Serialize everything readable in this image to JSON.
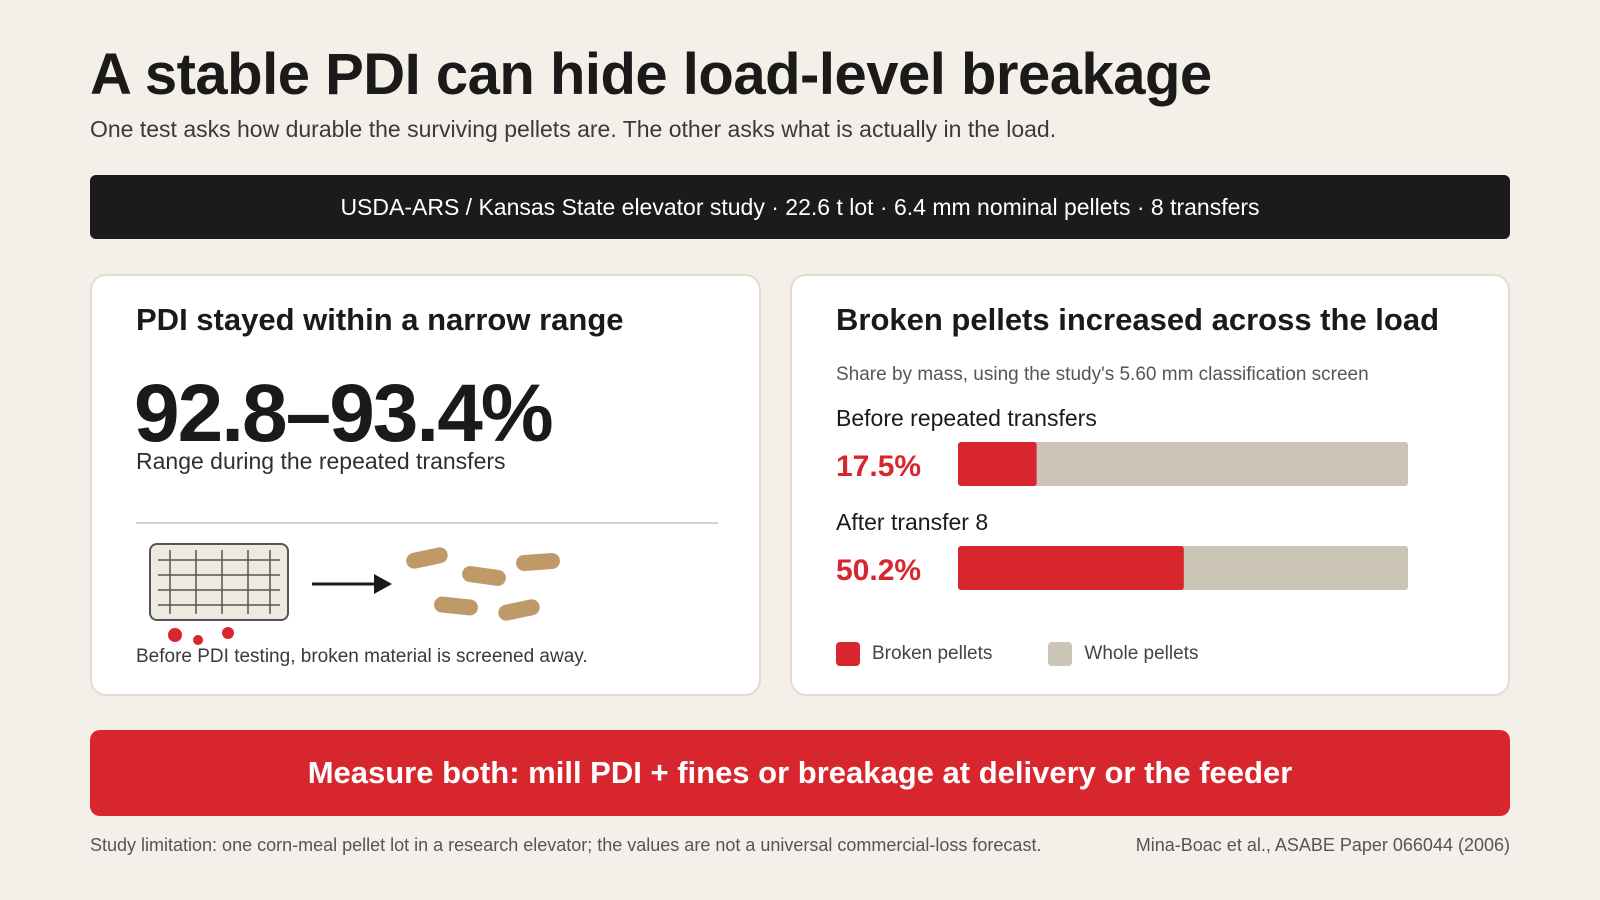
{
  "header": {
    "title": "A stable PDI can hide load-level breakage",
    "subtitle": "One test asks how durable the surviving pellets are. The other asks what is actually in the load."
  },
  "banner": {
    "text": "USDA-ARS / Kansas State elevator study · 22.6 t lot · 6.4 mm nominal pellets · 8 transfers"
  },
  "pdi_card": {
    "heading": "PDI stayed within a narrow range",
    "range_value": "92.8–93.4%",
    "range_caption": "Range during the repeated transfers",
    "illustration_caption": "Before PDI testing, broken material is screened away."
  },
  "colors": {
    "broken": "#d8262e",
    "whole": "#cbc5b8",
    "pellet": "#bf9a68",
    "screen": "#efeadf"
  },
  "chart_data": {
    "type": "bar",
    "orientation": "horizontal",
    "stacked": true,
    "title": "Broken pellets increased across the load",
    "subtitle": "Share by mass, using the study's 5.60 mm classification screen",
    "categories": [
      "Before repeated transfers",
      "After transfer 8"
    ],
    "series": [
      {
        "name": "Broken pellets",
        "values": [
          17.5,
          50.2
        ],
        "color": "#d8262e"
      },
      {
        "name": "Whole pellets",
        "values": [
          82.5,
          49.8
        ],
        "color": "#cbc5b8"
      }
    ],
    "data_labels": [
      "17.5%",
      "50.2%"
    ],
    "xlim": [
      0,
      100
    ],
    "grid": false,
    "legend": "bottom-left"
  },
  "cta": {
    "text": "Measure both: mill PDI + fines or breakage at delivery or the feeder"
  },
  "footer": {
    "limitation": "Study limitation: one corn-meal pellet lot in a research elevator; the values are not a universal commercial-loss forecast.",
    "citation": "Mina-Boac et al., ASABE Paper 066044 (2006)"
  }
}
